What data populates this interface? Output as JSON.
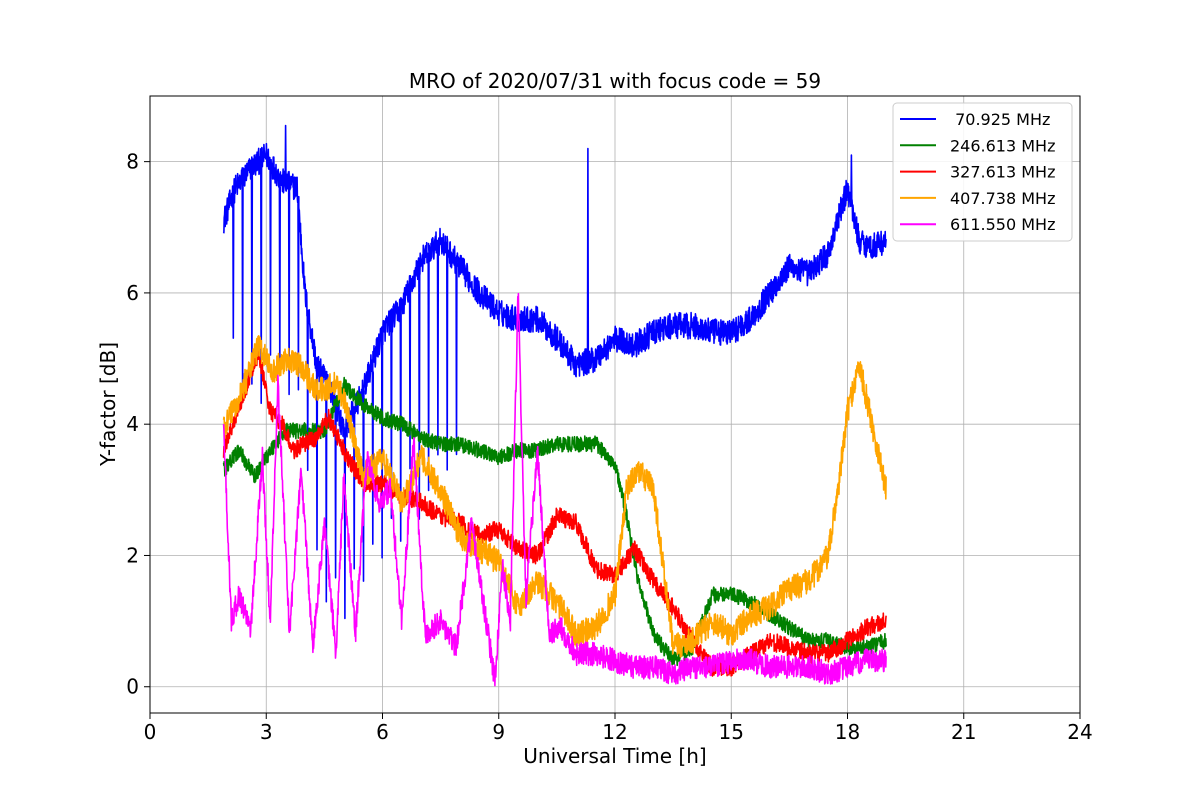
{
  "chart_data": {
    "type": "line",
    "title": "MRO of 2020/07/31 with focus code = 59",
    "xlabel": "Universal Time [h]",
    "ylabel": "Y-factor [dB]",
    "xlim": [
      0,
      24
    ],
    "ylim": [
      -0.4,
      9.0
    ],
    "xticks": [
      0,
      3,
      6,
      9,
      12,
      15,
      18,
      21,
      24
    ],
    "yticks": [
      0,
      2,
      4,
      6,
      8
    ],
    "grid": true,
    "legend_position": "top-right",
    "series": [
      {
        "name": " 70.925 MHz",
        "color": "#0000ff",
        "x": [
          1.9,
          2.2,
          2.6,
          3.0,
          3.4,
          3.8,
          4.0,
          4.3,
          4.7,
          5.0,
          5.5,
          6.0,
          6.5,
          7.0,
          7.5,
          8.0,
          8.5,
          9.0,
          9.5,
          10.0,
          10.5,
          11.0,
          11.5,
          12.0,
          12.5,
          13.0,
          13.5,
          14.0,
          14.5,
          15.0,
          15.5,
          16.0,
          16.5,
          17.0,
          17.5,
          18.0,
          18.3,
          18.6,
          19.0
        ],
        "y": [
          7.1,
          7.6,
          7.9,
          8.1,
          7.7,
          7.6,
          6.0,
          4.9,
          4.5,
          3.9,
          4.5,
          5.4,
          5.8,
          6.5,
          6.8,
          6.4,
          6.0,
          5.7,
          5.6,
          5.6,
          5.3,
          4.9,
          5.0,
          5.3,
          5.2,
          5.4,
          5.5,
          5.5,
          5.4,
          5.4,
          5.6,
          6.0,
          6.4,
          6.3,
          6.6,
          7.6,
          6.8,
          6.7,
          6.8
        ],
        "dip_depth": 3.0,
        "spikes": [
          [
            3.5,
            8.55
          ],
          [
            11.3,
            8.2
          ],
          [
            18.1,
            8.1
          ]
        ]
      },
      {
        "name": "246.613 MHz",
        "color": "#008000",
        "x": [
          1.9,
          2.3,
          2.7,
          3.1,
          3.5,
          4.0,
          4.5,
          5.0,
          5.5,
          6.0,
          6.5,
          7.0,
          7.5,
          8.0,
          8.5,
          9.0,
          9.5,
          10.0,
          10.5,
          11.0,
          11.5,
          12.0,
          12.3,
          12.6,
          13.0,
          13.5,
          14.0,
          14.5,
          15.0,
          15.5,
          16.0,
          16.5,
          17.0,
          17.5,
          18.0,
          18.5,
          19.0
        ],
        "y": [
          3.3,
          3.6,
          3.2,
          3.6,
          3.9,
          3.9,
          3.9,
          4.6,
          4.3,
          4.1,
          4.0,
          3.8,
          3.7,
          3.7,
          3.6,
          3.5,
          3.6,
          3.6,
          3.7,
          3.7,
          3.7,
          3.4,
          2.6,
          1.6,
          0.8,
          0.4,
          0.6,
          1.4,
          1.4,
          1.3,
          1.1,
          0.9,
          0.7,
          0.7,
          0.6,
          0.6,
          0.7
        ]
      },
      {
        "name": "327.613 MHz",
        "color": "#ff0000",
        "x": [
          1.9,
          2.2,
          2.5,
          2.8,
          3.1,
          3.4,
          3.7,
          4.0,
          4.3,
          4.6,
          5.0,
          5.5,
          6.0,
          6.5,
          7.0,
          7.5,
          8.0,
          8.5,
          9.0,
          9.5,
          10.0,
          10.5,
          11.0,
          11.5,
          12.0,
          12.5,
          13.0,
          13.5,
          14.0,
          14.5,
          15.0,
          15.5,
          16.0,
          16.5,
          17.0,
          17.5,
          18.0,
          18.5,
          19.0
        ],
        "y": [
          3.6,
          4.1,
          4.6,
          5.1,
          4.2,
          4.0,
          3.6,
          3.7,
          3.8,
          4.1,
          3.6,
          3.1,
          3.1,
          2.9,
          2.8,
          2.6,
          2.5,
          2.3,
          2.4,
          2.1,
          2.0,
          2.6,
          2.5,
          1.8,
          1.7,
          2.1,
          1.6,
          1.2,
          0.7,
          0.3,
          0.3,
          0.5,
          0.7,
          0.6,
          0.5,
          0.5,
          0.7,
          0.9,
          1.0
        ]
      },
      {
        "name": "407.738 MHz",
        "color": "#ffa500",
        "x": [
          1.9,
          2.2,
          2.5,
          2.8,
          3.2,
          3.5,
          3.9,
          4.3,
          4.8,
          5.0,
          5.5,
          6.0,
          6.5,
          7.0,
          7.5,
          8.0,
          8.5,
          9.0,
          9.5,
          10.0,
          10.5,
          11.0,
          11.5,
          12.0,
          12.3,
          12.6,
          13.0,
          13.5,
          14.0,
          14.5,
          15.0,
          15.5,
          16.0,
          16.5,
          17.0,
          17.5,
          17.8,
          18.0,
          18.3,
          18.6,
          19.0
        ],
        "y": [
          3.9,
          4.3,
          4.7,
          5.2,
          4.8,
          5.0,
          4.9,
          4.5,
          4.6,
          4.4,
          3.2,
          3.5,
          2.8,
          3.5,
          3.0,
          2.3,
          2.1,
          1.9,
          1.2,
          1.6,
          1.3,
          0.8,
          0.9,
          1.4,
          3.0,
          3.3,
          3.0,
          0.6,
          0.7,
          1.0,
          0.8,
          1.1,
          1.2,
          1.5,
          1.6,
          2.0,
          3.2,
          4.2,
          4.9,
          4.1,
          3.0
        ]
      },
      {
        "name": "611.550 MHz",
        "color": "#ff00ff",
        "x": [
          1.9,
          2.1,
          2.3,
          2.6,
          2.9,
          3.1,
          3.3,
          3.6,
          3.9,
          4.2,
          4.5,
          4.8,
          5.0,
          5.3,
          5.6,
          5.9,
          6.2,
          6.5,
          6.8,
          7.1,
          7.5,
          7.9,
          8.3,
          8.6,
          8.9,
          9.1,
          9.3,
          9.5,
          9.7,
          10.0,
          10.3,
          10.6,
          11.0,
          11.5,
          12.0,
          12.5,
          13.0,
          13.5,
          14.0,
          14.5,
          15.0,
          15.5,
          16.0,
          16.5,
          17.0,
          17.5,
          18.0,
          18.5,
          19.0
        ],
        "y": [
          4.0,
          1.0,
          1.4,
          0.9,
          3.5,
          1.0,
          4.6,
          0.8,
          3.3,
          0.6,
          2.5,
          0.5,
          3.2,
          0.8,
          3.5,
          2.8,
          3.0,
          1.0,
          3.8,
          0.8,
          1.0,
          0.6,
          2.5,
          1.3,
          0.1,
          1.8,
          1.0,
          6.0,
          1.3,
          3.6,
          0.8,
          0.9,
          0.5,
          0.5,
          0.4,
          0.3,
          0.3,
          0.2,
          0.3,
          0.3,
          0.4,
          0.4,
          0.3,
          0.3,
          0.3,
          0.2,
          0.3,
          0.4,
          0.4
        ]
      }
    ]
  }
}
